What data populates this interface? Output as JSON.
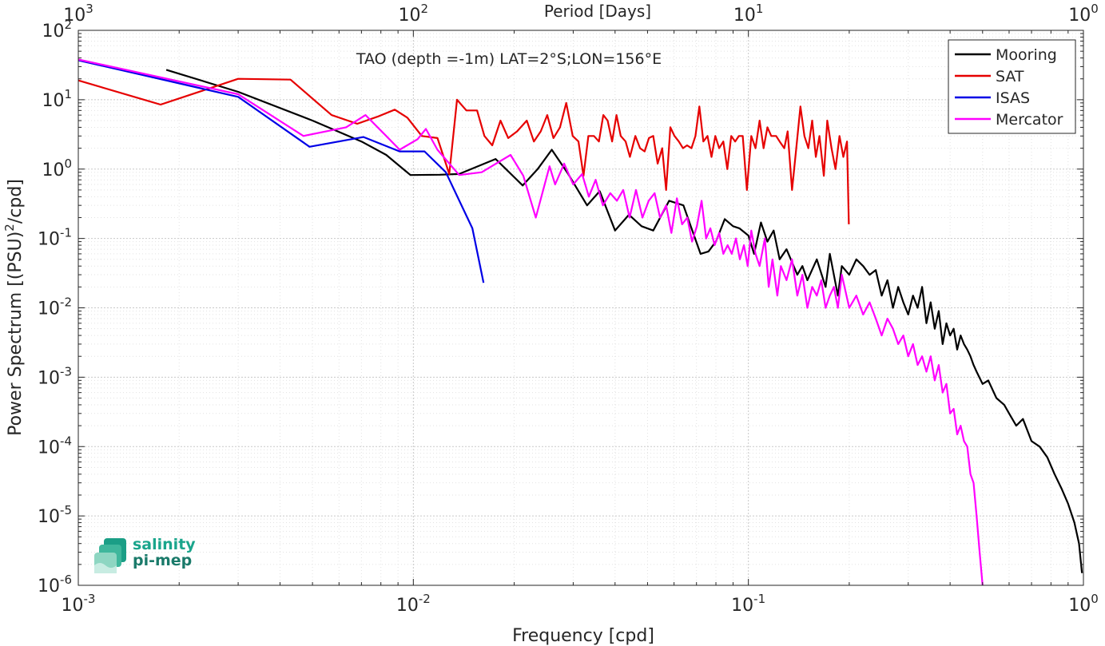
{
  "chart_data": {
    "type": "line",
    "title": "TAO (depth =-1m) LAT=2°S;LON=156°E",
    "xlabel": "Frequency [cpd]",
    "ylabel": "Power Spectrum [(PSU)^2/cpd]",
    "top_xlabel": "Period [Days]",
    "xscale": "log",
    "yscale": "log",
    "xlim": [
      0.001,
      1
    ],
    "ylim": [
      1e-06,
      100
    ],
    "x_ticks": [
      0.001,
      0.01,
      0.1,
      1
    ],
    "x_tick_labels": [
      {
        "base": "10",
        "exp": "-3"
      },
      {
        "base": "10",
        "exp": "-2"
      },
      {
        "base": "10",
        "exp": "-1"
      },
      {
        "base": "10",
        "exp": "0"
      }
    ],
    "top_x_tick_labels": [
      {
        "base": "10",
        "exp": "3"
      },
      {
        "base": "10",
        "exp": "2"
      },
      {
        "base": "10",
        "exp": "1"
      },
      {
        "base": "10",
        "exp": "0"
      }
    ],
    "y_ticks": [
      100,
      10,
      1,
      0.1,
      0.01,
      0.001,
      0.0001,
      1e-05,
      1e-06
    ],
    "y_tick_labels": [
      {
        "base": "10",
        "exp": "2"
      },
      {
        "base": "10",
        "exp": "1"
      },
      {
        "base": "10",
        "exp": "0"
      },
      {
        "base": "10",
        "exp": "-1"
      },
      {
        "base": "10",
        "exp": "-2"
      },
      {
        "base": "10",
        "exp": "-3"
      },
      {
        "base": "10",
        "exp": "-4"
      },
      {
        "base": "10",
        "exp": "-5"
      },
      {
        "base": "10",
        "exp": "-6"
      }
    ],
    "grid": true,
    "legend_position": "top-right",
    "series": [
      {
        "name": "Mooring",
        "color": "#000000",
        "points": [
          [
            0.00183,
            27
          ],
          [
            0.003,
            13
          ],
          [
            0.005,
            5
          ],
          [
            0.007,
            2.5
          ],
          [
            0.0083,
            1.6
          ],
          [
            0.0098,
            0.82
          ],
          [
            0.012,
            0.83
          ],
          [
            0.0137,
            0.85
          ],
          [
            0.0176,
            1.4
          ],
          [
            0.0212,
            0.58
          ],
          [
            0.0235,
            1.0
          ],
          [
            0.0259,
            1.9
          ],
          [
            0.029,
            0.85
          ],
          [
            0.033,
            0.3
          ],
          [
            0.036,
            0.48
          ],
          [
            0.04,
            0.13
          ],
          [
            0.044,
            0.22
          ],
          [
            0.048,
            0.15
          ],
          [
            0.052,
            0.13
          ],
          [
            0.058,
            0.35
          ],
          [
            0.064,
            0.3
          ],
          [
            0.067,
            0.16
          ],
          [
            0.072,
            0.06
          ],
          [
            0.076,
            0.065
          ],
          [
            0.08,
            0.09
          ],
          [
            0.085,
            0.19
          ],
          [
            0.09,
            0.15
          ],
          [
            0.094,
            0.14
          ],
          [
            0.1,
            0.11
          ],
          [
            0.104,
            0.06
          ],
          [
            0.109,
            0.17
          ],
          [
            0.114,
            0.09
          ],
          [
            0.119,
            0.13
          ],
          [
            0.124,
            0.05
          ],
          [
            0.13,
            0.07
          ],
          [
            0.14,
            0.03
          ],
          [
            0.145,
            0.04
          ],
          [
            0.15,
            0.025
          ],
          [
            0.16,
            0.05
          ],
          [
            0.17,
            0.02
          ],
          [
            0.175,
            0.06
          ],
          [
            0.185,
            0.015
          ],
          [
            0.19,
            0.04
          ],
          [
            0.2,
            0.03
          ],
          [
            0.21,
            0.05
          ],
          [
            0.22,
            0.04
          ],
          [
            0.23,
            0.03
          ],
          [
            0.24,
            0.035
          ],
          [
            0.25,
            0.015
          ],
          [
            0.26,
            0.025
          ],
          [
            0.27,
            0.01
          ],
          [
            0.28,
            0.02
          ],
          [
            0.29,
            0.012
          ],
          [
            0.3,
            0.008
          ],
          [
            0.31,
            0.015
          ],
          [
            0.32,
            0.01
          ],
          [
            0.33,
            0.02
          ],
          [
            0.34,
            0.006
          ],
          [
            0.35,
            0.012
          ],
          [
            0.36,
            0.005
          ],
          [
            0.37,
            0.009
          ],
          [
            0.38,
            0.003
          ],
          [
            0.39,
            0.006
          ],
          [
            0.4,
            0.004
          ],
          [
            0.41,
            0.005
          ],
          [
            0.42,
            0.0025
          ],
          [
            0.43,
            0.004
          ],
          [
            0.44,
            0.003
          ],
          [
            0.45,
            0.0025
          ],
          [
            0.46,
            0.002
          ],
          [
            0.47,
            0.0015
          ],
          [
            0.48,
            0.0012
          ],
          [
            0.5,
            0.0008
          ],
          [
            0.52,
            0.0009
          ],
          [
            0.55,
            0.0005
          ],
          [
            0.58,
            0.0004
          ],
          [
            0.6,
            0.0003
          ],
          [
            0.63,
            0.0002
          ],
          [
            0.66,
            0.00025
          ],
          [
            0.7,
            0.00012
          ],
          [
            0.74,
            0.0001
          ],
          [
            0.78,
            7e-05
          ],
          [
            0.82,
            4e-05
          ],
          [
            0.86,
            2.5e-05
          ],
          [
            0.9,
            1.5e-05
          ],
          [
            0.94,
            8e-06
          ],
          [
            0.97,
            4e-06
          ],
          [
            0.99,
            1.5e-06
          ]
        ]
      },
      {
        "name": "SAT",
        "color": "#e60000",
        "points": [
          [
            0.001,
            19
          ],
          [
            0.00176,
            8.5
          ],
          [
            0.003,
            20
          ],
          [
            0.0043,
            19.5
          ],
          [
            0.0057,
            6
          ],
          [
            0.0068,
            4.5
          ],
          [
            0.0079,
            5.8
          ],
          [
            0.0088,
            7.2
          ],
          [
            0.0096,
            5.5
          ],
          [
            0.0106,
            3
          ],
          [
            0.0118,
            2.8
          ],
          [
            0.0128,
            0.85
          ],
          [
            0.0135,
            10
          ],
          [
            0.0144,
            7
          ],
          [
            0.0155,
            7
          ],
          [
            0.0163,
            3
          ],
          [
            0.0172,
            2.2
          ],
          [
            0.0182,
            5
          ],
          [
            0.0192,
            2.8
          ],
          [
            0.0204,
            3.5
          ],
          [
            0.0218,
            5
          ],
          [
            0.0229,
            2.5
          ],
          [
            0.024,
            3.5
          ],
          [
            0.0251,
            6
          ],
          [
            0.0262,
            2.8
          ],
          [
            0.0274,
            4
          ],
          [
            0.0286,
            9
          ],
          [
            0.0299,
            3
          ],
          [
            0.0311,
            2.5
          ],
          [
            0.0322,
            0.8
          ],
          [
            0.0333,
            3
          ],
          [
            0.0346,
            3
          ],
          [
            0.0358,
            2.5
          ],
          [
            0.0369,
            6
          ],
          [
            0.038,
            5
          ],
          [
            0.0392,
            2.5
          ],
          [
            0.0404,
            6
          ],
          [
            0.0416,
            3
          ],
          [
            0.043,
            2.5
          ],
          [
            0.0443,
            1.5
          ],
          [
            0.046,
            3
          ],
          [
            0.0475,
            2
          ],
          [
            0.049,
            1.8
          ],
          [
            0.0505,
            2.8
          ],
          [
            0.052,
            3
          ],
          [
            0.0536,
            1.2
          ],
          [
            0.0553,
            2
          ],
          [
            0.0568,
            0.5
          ],
          [
            0.0585,
            4
          ],
          [
            0.0602,
            3
          ],
          [
            0.062,
            2.5
          ],
          [
            0.0638,
            2
          ],
          [
            0.0656,
            2.2
          ],
          [
            0.0676,
            2
          ],
          [
            0.0695,
            3
          ],
          [
            0.0714,
            8
          ],
          [
            0.0734,
            2.5
          ],
          [
            0.0755,
            3
          ],
          [
            0.0776,
            1.5
          ],
          [
            0.0797,
            3
          ],
          [
            0.0818,
            2
          ],
          [
            0.0842,
            2.5
          ],
          [
            0.0865,
            1
          ],
          [
            0.0889,
            3
          ],
          [
            0.0913,
            2.5
          ],
          [
            0.0937,
            3
          ],
          [
            0.0962,
            3
          ],
          [
            0.099,
            0.5
          ],
          [
            0.102,
            3
          ],
          [
            0.105,
            2
          ],
          [
            0.108,
            5
          ],
          [
            0.111,
            2
          ],
          [
            0.114,
            4
          ],
          [
            0.117,
            3
          ],
          [
            0.121,
            3
          ],
          [
            0.124,
            2.5
          ],
          [
            0.128,
            2
          ],
          [
            0.131,
            3.5
          ],
          [
            0.135,
            0.5
          ],
          [
            0.139,
            2
          ],
          [
            0.143,
            8
          ],
          [
            0.147,
            3
          ],
          [
            0.151,
            2
          ],
          [
            0.155,
            5
          ],
          [
            0.159,
            1.5
          ],
          [
            0.163,
            3
          ],
          [
            0.168,
            0.8
          ],
          [
            0.172,
            5
          ],
          [
            0.177,
            2
          ],
          [
            0.182,
            1
          ],
          [
            0.187,
            3
          ],
          [
            0.192,
            1.5
          ],
          [
            0.197,
            2.5
          ],
          [
            0.1995,
            0.16
          ]
        ]
      },
      {
        "name": "ISAS",
        "color": "#0000e6",
        "points": [
          [
            0.001,
            37
          ],
          [
            0.003,
            11
          ],
          [
            0.0049,
            2.1
          ],
          [
            0.0071,
            2.9
          ],
          [
            0.0091,
            1.8
          ],
          [
            0.0108,
            1.8
          ],
          [
            0.0125,
            0.9
          ],
          [
            0.015,
            0.14
          ],
          [
            0.0162,
            0.023
          ]
        ]
      },
      {
        "name": "Mercator",
        "color": "#ff00ff",
        "points": [
          [
            0.001,
            38
          ],
          [
            0.003,
            12
          ],
          [
            0.0047,
            3
          ],
          [
            0.0063,
            4
          ],
          [
            0.0072,
            6
          ],
          [
            0.0083,
            3
          ],
          [
            0.0091,
            1.9
          ],
          [
            0.0103,
            2.7
          ],
          [
            0.0109,
            3.8
          ],
          [
            0.0118,
            1.9
          ],
          [
            0.0137,
            0.82
          ],
          [
            0.016,
            0.9
          ],
          [
            0.0195,
            1.6
          ],
          [
            0.0213,
            0.8
          ],
          [
            0.0232,
            0.2
          ],
          [
            0.0255,
            1.1
          ],
          [
            0.0265,
            0.6
          ],
          [
            0.0282,
            1.2
          ],
          [
            0.03,
            0.6
          ],
          [
            0.0319,
            0.85
          ],
          [
            0.0334,
            0.4
          ],
          [
            0.035,
            0.7
          ],
          [
            0.0368,
            0.3
          ],
          [
            0.0387,
            0.45
          ],
          [
            0.0405,
            0.35
          ],
          [
            0.0423,
            0.5
          ],
          [
            0.0442,
            0.2
          ],
          [
            0.0462,
            0.5
          ],
          [
            0.0483,
            0.2
          ],
          [
            0.0504,
            0.35
          ],
          [
            0.0525,
            0.45
          ],
          [
            0.0545,
            0.2
          ],
          [
            0.0568,
            0.3
          ],
          [
            0.0589,
            0.12
          ],
          [
            0.0612,
            0.38
          ],
          [
            0.0634,
            0.16
          ],
          [
            0.0657,
            0.2
          ],
          [
            0.0679,
            0.09
          ],
          [
            0.0702,
            0.15
          ],
          [
            0.0725,
            0.35
          ],
          [
            0.0748,
            0.1
          ],
          [
            0.077,
            0.14
          ],
          [
            0.0793,
            0.08
          ],
          [
            0.0818,
            0.12
          ],
          [
            0.0842,
            0.06
          ],
          [
            0.0867,
            0.08
          ],
          [
            0.0892,
            0.06
          ],
          [
            0.0918,
            0.1
          ],
          [
            0.0943,
            0.05
          ],
          [
            0.097,
            0.08
          ],
          [
            0.0995,
            0.04
          ],
          [
            0.102,
            0.13
          ],
          [
            0.105,
            0.06
          ],
          [
            0.108,
            0.04
          ],
          [
            0.112,
            0.1
          ],
          [
            0.115,
            0.02
          ],
          [
            0.118,
            0.05
          ],
          [
            0.122,
            0.015
          ],
          [
            0.125,
            0.04
          ],
          [
            0.13,
            0.025
          ],
          [
            0.135,
            0.05
          ],
          [
            0.14,
            0.015
          ],
          [
            0.145,
            0.03
          ],
          [
            0.15,
            0.01
          ],
          [
            0.155,
            0.02
          ],
          [
            0.16,
            0.015
          ],
          [
            0.165,
            0.025
          ],
          [
            0.17,
            0.01
          ],
          [
            0.175,
            0.015
          ],
          [
            0.18,
            0.02
          ],
          [
            0.185,
            0.01
          ],
          [
            0.19,
            0.03
          ],
          [
            0.2,
            0.01
          ],
          [
            0.21,
            0.015
          ],
          [
            0.22,
            0.008
          ],
          [
            0.23,
            0.012
          ],
          [
            0.24,
            0.007
          ],
          [
            0.25,
            0.004
          ],
          [
            0.26,
            0.007
          ],
          [
            0.27,
            0.005
          ],
          [
            0.28,
            0.003
          ],
          [
            0.29,
            0.004
          ],
          [
            0.3,
            0.002
          ],
          [
            0.31,
            0.003
          ],
          [
            0.32,
            0.0015
          ],
          [
            0.33,
            0.002
          ],
          [
            0.34,
            0.0012
          ],
          [
            0.35,
            0.002
          ],
          [
            0.36,
            0.0009
          ],
          [
            0.37,
            0.0015
          ],
          [
            0.38,
            0.0006
          ],
          [
            0.39,
            0.0008
          ],
          [
            0.4,
            0.0003
          ],
          [
            0.41,
            0.00035
          ],
          [
            0.42,
            0.00015
          ],
          [
            0.43,
            0.0002
          ],
          [
            0.44,
            0.00012
          ],
          [
            0.45,
            0.0001
          ],
          [
            0.46,
            4e-05
          ],
          [
            0.47,
            3e-05
          ],
          [
            0.48,
            1e-05
          ],
          [
            0.49,
            3e-06
          ],
          [
            0.5,
            1e-06
          ]
        ]
      }
    ]
  },
  "logo": {
    "line1": "salinity",
    "line2": "pi-mep"
  }
}
